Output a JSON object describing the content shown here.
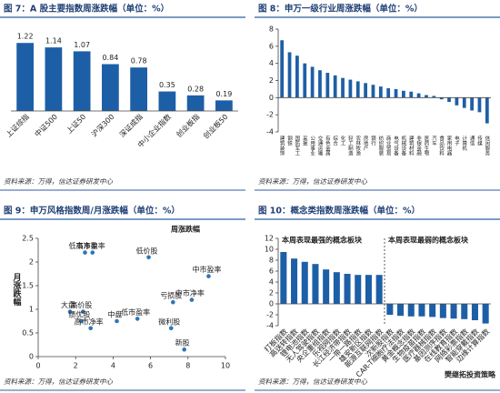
{
  "chart_data": [
    {
      "type": "bar",
      "title": "图 7：A 股主要指数周涨跌幅（单位：%）",
      "categories": [
        "上证综指",
        "中证500",
        "上证50",
        "沪深300",
        "深证成指",
        "中小企业指数",
        "创业板指",
        "创业板50"
      ],
      "values": [
        1.22,
        1.14,
        1.07,
        0.84,
        0.78,
        0.35,
        0.28,
        0.19
      ],
      "color": "#1d5fa6",
      "source": "资料来源：万得，信达证券研发中心"
    },
    {
      "type": "bar",
      "title": "图 8：申万一级行业周涨跌幅（单位：%）",
      "categories": [
        "建筑装饰",
        "钢铁",
        "国防军工",
        "采掘",
        "公用事业",
        "交通运输",
        "有色金属",
        "综合",
        "化工",
        "轻工制造",
        "农林牧渔",
        "房地产",
        "银行",
        "纺织服装",
        "商业贸易",
        "电气设备",
        "机械设备",
        "建筑材料",
        "非银金融",
        "医药生物",
        "汽车",
        "食品饮料",
        "家用电器",
        "电子",
        "计算机",
        "通信",
        "传媒",
        "休闲服务"
      ],
      "values": [
        6.7,
        5.3,
        4.9,
        4.0,
        3.6,
        3.2,
        2.9,
        2.6,
        2.3,
        2.1,
        1.9,
        1.7,
        1.5,
        1.3,
        1.1,
        1.0,
        0.8,
        0.7,
        0.5,
        0.3,
        0.2,
        -0.2,
        -0.5,
        -0.9,
        -1.2,
        -1.5,
        -1.7,
        -3.0
      ],
      "color": "#1d5fa6",
      "ylim": [
        -4,
        8
      ],
      "yticks": [
        -4,
        -2,
        0,
        2,
        4,
        6,
        8
      ],
      "source": "资料来源：万得，信达证券研发中心"
    },
    {
      "type": "scatter",
      "title": "图 9：申万风格指数周/月涨跌幅（单位：%）",
      "xlabel": "周涨跌幅",
      "ylabel": "月涨跌幅",
      "point_labels": [
        "低市净率",
        "高市盈率",
        "低价股",
        "中市盈率",
        "中市净率",
        "亏损股",
        "大盘",
        "高价股",
        "绩优股",
        "高市净率",
        "中盘",
        "低市盈率",
        "微利股",
        "新股"
      ],
      "x": [
        2.5,
        2.9,
        5.9,
        9.1,
        8.2,
        7.2,
        1.7,
        2.4,
        2.3,
        2.8,
        4.2,
        5.3,
        7.1,
        7.8
      ],
      "values": [
        2.2,
        2.2,
        2.1,
        1.7,
        1.2,
        1.15,
        0.95,
        0.95,
        0.75,
        0.6,
        0.75,
        0.8,
        0.6,
        0.15
      ],
      "color": "#2e75b6",
      "xlim": [
        0,
        10
      ],
      "xticks": [
        0,
        2,
        4,
        6,
        8,
        10
      ],
      "ylim": [
        0,
        2.5
      ],
      "yticks": [
        0,
        0.5,
        1,
        1.5,
        2,
        2.5
      ],
      "source": "资料来源：万得，信达证券研发中心"
    },
    {
      "type": "bar",
      "title": "图 10：概念类指数周涨跌幅（单位：%）",
      "annotations": [
        "本周表现最强的概念板块",
        "本周表现最弱的概念板块"
      ],
      "categories": [
        "打板指数",
        "高送转指数",
        "锂电池指数",
        "无人驾驶指数",
        "央企重组指数",
        "乐视网指数",
        "长江经济带指数",
        "一带一路指数",
        "雄安新区指数",
        "能源互联网指数",
        "次新股指数",
        "CAR-T细胞疗法指数",
        "黄金概念指数",
        "生物疫苗指数",
        "医疗器械指数",
        "基因测序指数",
        "在线教育指数",
        "网络彩票指数",
        "智能穿戴指数",
        "边缘计算指数"
      ],
      "values": [
        9.5,
        8.3,
        7.7,
        7.3,
        6.3,
        5.8,
        5.5,
        5.3,
        5.3,
        5.3,
        -2.0,
        -2.2,
        -2.3,
        -2.3,
        -2.4,
        -2.6,
        -2.7,
        -2.8,
        -3.0,
        -3.6
      ],
      "color": "#1d5fa6",
      "ylim": [
        -4,
        12
      ],
      "yticks": [
        -4,
        -2,
        0,
        2,
        4,
        6,
        8,
        10,
        12
      ],
      "source": "资料来源：万得，信达证券研发中心"
    }
  ],
  "watermark": "樊继拓投资策略"
}
